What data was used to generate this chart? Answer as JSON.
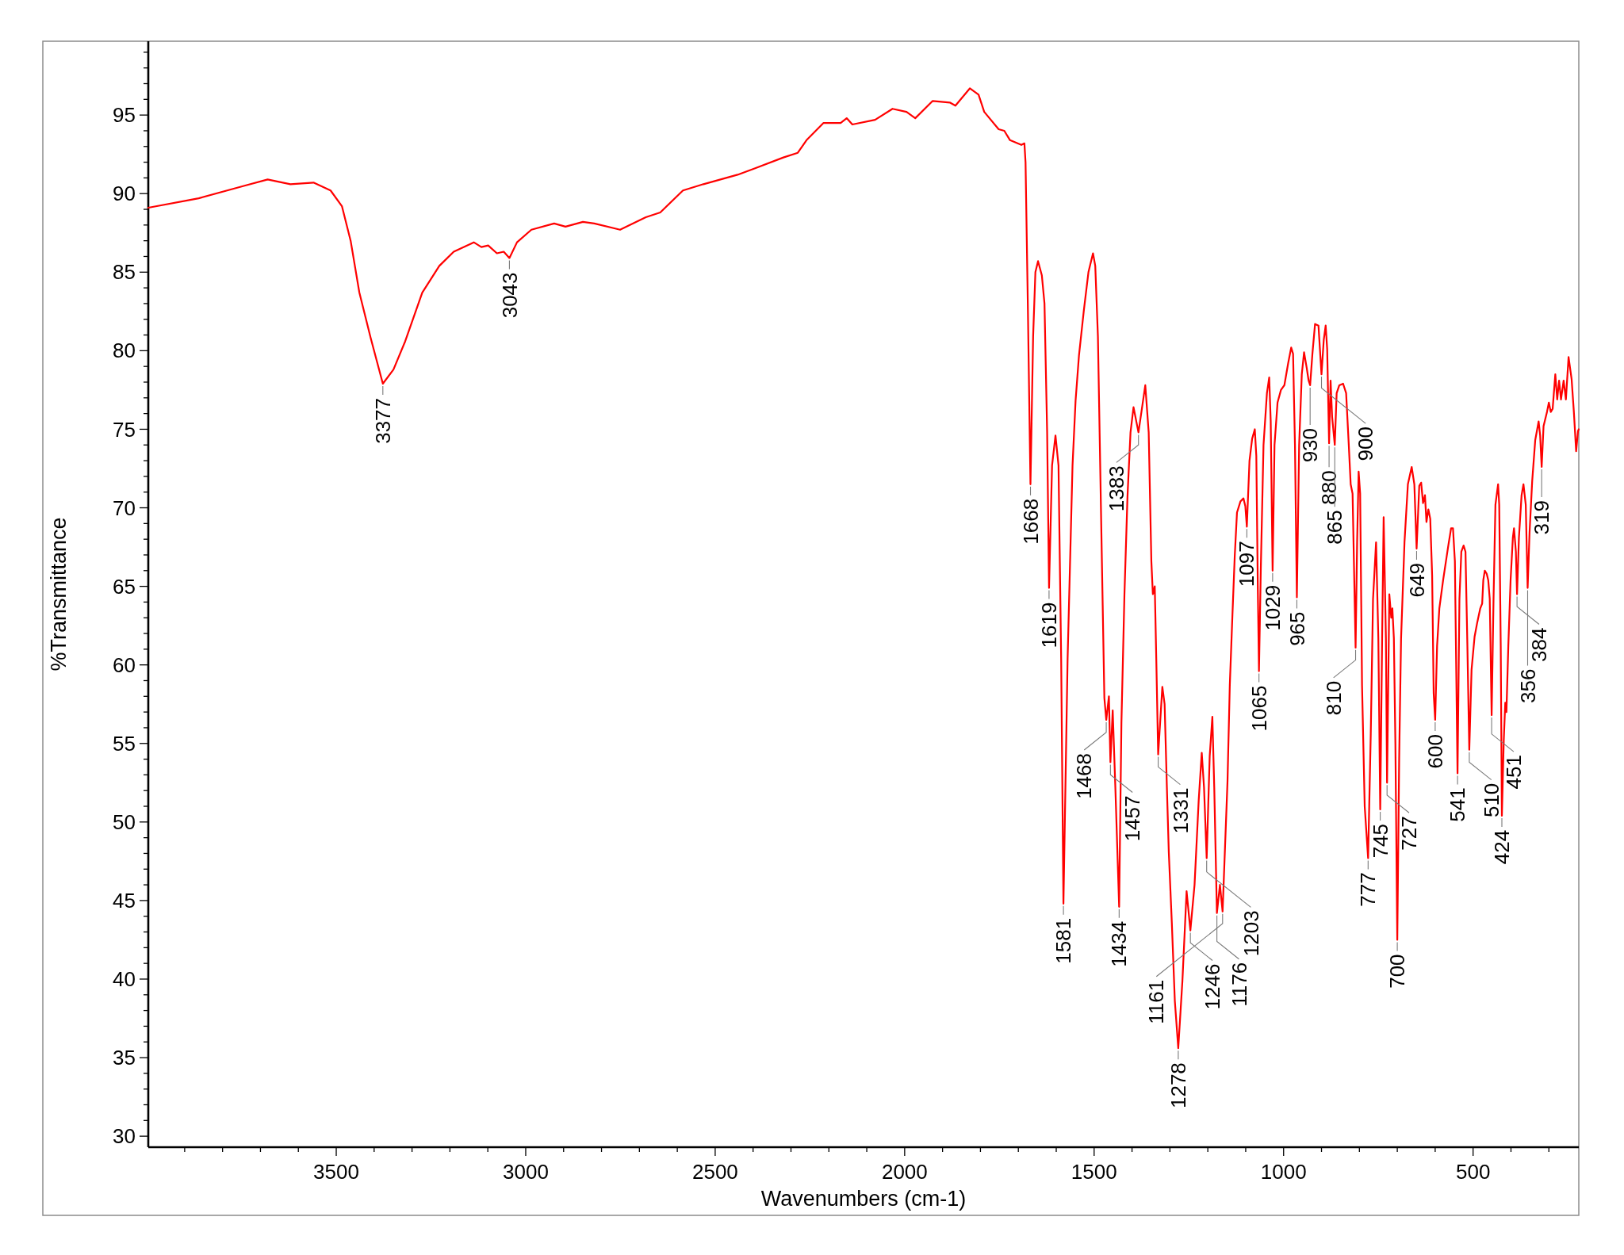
{
  "chart_data": {
    "type": "line",
    "xlabel": "Wavenumbers (cm-1)",
    "ylabel": "%Transmittance",
    "color": "#ff0000",
    "xlim": [
      3996,
      221
    ],
    "ylim": [
      29.3,
      99.7
    ],
    "xticks": [
      {
        "value": 3900,
        "label": null
      },
      {
        "value": 3800,
        "label": null
      },
      {
        "value": 3700,
        "label": null
      },
      {
        "value": 3600,
        "label": null
      },
      3500,
      {
        "value": 3400,
        "label": null
      },
      {
        "value": 3300,
        "label": null
      },
      {
        "value": 3200,
        "label": null
      },
      {
        "value": 3100,
        "label": null
      },
      3000,
      {
        "value": 2900,
        "label": null
      },
      {
        "value": 2800,
        "label": null
      },
      {
        "value": 2700,
        "label": null
      },
      {
        "value": 2600,
        "label": null
      },
      2500,
      {
        "value": 2400,
        "label": null
      },
      {
        "value": 2300,
        "label": null
      },
      {
        "value": 2200,
        "label": null
      },
      {
        "value": 2100,
        "label": null
      },
      2000,
      {
        "value": 1900,
        "label": null
      },
      {
        "value": 1800,
        "label": null
      },
      {
        "value": 1700,
        "label": null
      },
      {
        "value": 1600,
        "label": null
      },
      1500,
      {
        "value": 1400,
        "label": null
      },
      {
        "value": 1300,
        "label": null
      },
      {
        "value": 1200,
        "label": null
      },
      {
        "value": 1100,
        "label": null
      },
      1000,
      {
        "value": 900,
        "label": null
      },
      {
        "value": 800,
        "label": null
      },
      {
        "value": 700,
        "label": null
      },
      {
        "value": 600,
        "label": null
      },
      500,
      {
        "value": 400,
        "label": null
      },
      {
        "value": 300,
        "label": null
      }
    ],
    "yticks": [
      30,
      {
        "value": 31,
        "label": null
      },
      {
        "value": 32,
        "label": null
      },
      {
        "value": 33,
        "label": null
      },
      {
        "value": 34,
        "label": null
      },
      35,
      {
        "value": 36,
        "label": null
      },
      {
        "value": 37,
        "label": null
      },
      {
        "value": 38,
        "label": null
      },
      {
        "value": 39,
        "label": null
      },
      40,
      {
        "value": 41,
        "label": null
      },
      {
        "value": 42,
        "label": null
      },
      {
        "value": 43,
        "label": null
      },
      {
        "value": 44,
        "label": null
      },
      45,
      {
        "value": 46,
        "label": null
      },
      {
        "value": 47,
        "label": null
      },
      {
        "value": 48,
        "label": null
      },
      {
        "value": 49,
        "label": null
      },
      50,
      {
        "value": 51,
        "label": null
      },
      {
        "value": 52,
        "label": null
      },
      {
        "value": 53,
        "label": null
      },
      {
        "value": 54,
        "label": null
      },
      55,
      {
        "value": 56,
        "label": null
      },
      {
        "value": 57,
        "label": null
      },
      {
        "value": 58,
        "label": null
      },
      {
        "value": 59,
        "label": null
      },
      60,
      {
        "value": 61,
        "label": null
      },
      {
        "value": 62,
        "label": null
      },
      {
        "value": 63,
        "label": null
      },
      {
        "value": 64,
        "label": null
      },
      65,
      {
        "value": 66,
        "label": null
      },
      {
        "value": 67,
        "label": null
      },
      {
        "value": 68,
        "label": null
      },
      {
        "value": 69,
        "label": null
      },
      70,
      {
        "value": 71,
        "label": null
      },
      {
        "value": 72,
        "label": null
      },
      {
        "value": 73,
        "label": null
      },
      {
        "value": 74,
        "label": null
      },
      75,
      {
        "value": 76,
        "label": null
      },
      {
        "value": 77,
        "label": null
      },
      {
        "value": 78,
        "label": null
      },
      {
        "value": 79,
        "label": null
      },
      80,
      {
        "value": 81,
        "label": null
      },
      {
        "value": 82,
        "label": null
      },
      {
        "value": 83,
        "label": null
      },
      {
        "value": 84,
        "label": null
      },
      85,
      {
        "value": 86,
        "label": null
      },
      {
        "value": 87,
        "label": null
      },
      {
        "value": 88,
        "label": null
      },
      {
        "value": 89,
        "label": null
      },
      90,
      {
        "value": 91,
        "label": null
      },
      {
        "value": 92,
        "label": null
      },
      {
        "value": 93,
        "label": null
      },
      {
        "value": 94,
        "label": null
      },
      95,
      {
        "value": 96,
        "label": null
      },
      {
        "value": 97,
        "label": null
      },
      {
        "value": 98,
        "label": null
      },
      {
        "value": 99,
        "label": null
      }
    ],
    "x": [
      3996,
      3863,
      3742,
      3681,
      3621,
      3560,
      3515,
      3485,
      3462,
      3439,
      3409,
      3377,
      3349,
      3318,
      3273,
      3228,
      3190,
      3137,
      3117,
      3099,
      3076,
      3058,
      3043,
      3023,
      2985,
      2925,
      2895,
      2849,
      2819,
      2751,
      2683,
      2645,
      2585,
      2531,
      2441,
      2396,
      2320,
      2282,
      2259,
      2214,
      2169,
      2153,
      2138,
      2078,
      2032,
      1995,
      1972,
      1926,
      1881,
      1866,
      1828,
      1805,
      1790,
      1752,
      1737,
      1722,
      1692,
      1684,
      1681,
      1675,
      1668,
      1661,
      1655,
      1648,
      1638,
      1631,
      1624,
      1619,
      1611,
      1602,
      1594,
      1587,
      1581,
      1570,
      1557,
      1549,
      1540,
      1527,
      1515,
      1503,
      1497,
      1490,
      1481,
      1473,
      1468,
      1461,
      1457,
      1451,
      1444,
      1434,
      1428,
      1420,
      1412,
      1404,
      1396,
      1383,
      1365,
      1356,
      1349,
      1345,
      1340,
      1336,
      1331,
      1320,
      1314,
      1308,
      1303,
      1295,
      1287,
      1278,
      1267,
      1256,
      1246,
      1235,
      1224,
      1216,
      1210,
      1203,
      1195,
      1188,
      1183,
      1176,
      1168,
      1161,
      1148,
      1142,
      1135,
      1129,
      1123,
      1114,
      1106,
      1101,
      1097,
      1090,
      1083,
      1076,
      1072,
      1068,
      1065,
      1060,
      1053,
      1044,
      1038,
      1034,
      1029,
      1024,
      1016,
      1007,
      998,
      988,
      980,
      975,
      970,
      965,
      959,
      952,
      946,
      939,
      934,
      930,
      924,
      917,
      908,
      900,
      894,
      889,
      885,
      880,
      876,
      872,
      865,
      860,
      853,
      843,
      835,
      828,
      823,
      818,
      810,
      806,
      802,
      798,
      793,
      786,
      777,
      770,
      764,
      756,
      750,
      745,
      740,
      736,
      730,
      727,
      721,
      716,
      713,
      709,
      705,
      700,
      695,
      690,
      681,
      672,
      662,
      655,
      649,
      642,
      637,
      632,
      627,
      623,
      618,
      613,
      608,
      604,
      600,
      595,
      589,
      579,
      566,
      558,
      553,
      548,
      541,
      536,
      531,
      525,
      520,
      515,
      510,
      504,
      496,
      489,
      481,
      476,
      473,
      469,
      464,
      460,
      456,
      451,
      446,
      441,
      434,
      431,
      427,
      424,
      419,
      415,
      412,
      407,
      401,
      395,
      392,
      387,
      384,
      379,
      372,
      367,
      361,
      356,
      351,
      344,
      336,
      327,
      323,
      319,
      314,
      305,
      300,
      295,
      290,
      283,
      278,
      273,
      268,
      261,
      255,
      248,
      240,
      234,
      228,
      223,
      221
    ],
    "values": [
      89.1,
      89.7,
      90.5,
      90.9,
      90.6,
      90.7,
      90.2,
      89.2,
      87.0,
      83.7,
      80.8,
      77.9,
      78.8,
      80.6,
      83.7,
      85.4,
      86.3,
      86.9,
      86.6,
      86.7,
      86.2,
      86.3,
      85.9,
      86.9,
      87.7,
      88.1,
      87.9,
      88.2,
      88.1,
      87.7,
      88.5,
      88.8,
      90.2,
      90.6,
      91.2,
      91.6,
      92.3,
      92.6,
      93.4,
      94.5,
      94.5,
      94.8,
      94.4,
      94.7,
      95.4,
      95.2,
      94.8,
      95.9,
      95.8,
      95.6,
      96.7,
      96.3,
      95.2,
      94.1,
      94.0,
      93.4,
      93.1,
      93.2,
      92.0,
      83.0,
      71.5,
      80.9,
      85.0,
      85.7,
      84.8,
      83.0,
      74.8,
      64.9,
      72.7,
      74.6,
      72.7,
      60.4,
      44.8,
      60.4,
      72.7,
      76.8,
      79.7,
      82.6,
      85.0,
      86.2,
      85.4,
      80.9,
      68.6,
      57.9,
      56.5,
      58.0,
      53.8,
      57.1,
      52.2,
      44.6,
      56.3,
      64.5,
      70.7,
      74.8,
      76.4,
      74.8,
      77.8,
      74.8,
      66.6,
      64.5,
      65.0,
      60.4,
      54.3,
      58.6,
      57.5,
      52.2,
      48.1,
      43.6,
      38.6,
      35.6,
      39.9,
      45.6,
      43.1,
      46.0,
      51.4,
      54.4,
      52.2,
      47.7,
      54.2,
      56.7,
      52.2,
      44.2,
      46.0,
      44.3,
      52.6,
      58.7,
      63.2,
      66.9,
      69.7,
      70.4,
      70.6,
      70.1,
      68.8,
      73.0,
      74.4,
      75.0,
      73.3,
      64.8,
      59.6,
      66.3,
      74.0,
      77.3,
      78.3,
      75.5,
      66.0,
      74.0,
      76.7,
      77.5,
      77.8,
      79.2,
      80.2,
      79.8,
      74.0,
      64.3,
      74.0,
      78.5,
      79.9,
      78.9,
      78.1,
      77.8,
      79.8,
      81.7,
      81.6,
      78.5,
      80.7,
      81.6,
      80.1,
      74.1,
      78.1,
      75.8,
      74.0,
      77.3,
      77.8,
      77.9,
      77.3,
      74.0,
      71.5,
      70.9,
      61.1,
      67.8,
      72.3,
      70.9,
      58.7,
      51.0,
      47.7,
      55.6,
      64.2,
      67.8,
      61.7,
      50.8,
      61.7,
      69.4,
      61.7,
      52.5,
      64.5,
      63.0,
      63.6,
      61.7,
      55.0,
      42.5,
      54.1,
      61.7,
      67.8,
      71.5,
      72.6,
      71.5,
      67.4,
      71.4,
      71.6,
      70.3,
      70.8,
      69.1,
      69.9,
      69.3,
      65.7,
      58.2,
      56.5,
      61.2,
      63.6,
      65.4,
      67.5,
      68.7,
      68.7,
      66.6,
      53.1,
      64.2,
      67.2,
      67.6,
      67.2,
      61.2,
      54.6,
      59.7,
      61.8,
      62.7,
      63.6,
      63.9,
      65.4,
      66.0,
      65.8,
      65.4,
      64.2,
      56.8,
      64.2,
      70.2,
      71.5,
      70.2,
      61.2,
      50.4,
      55.2,
      57.6,
      57.0,
      61.2,
      65.4,
      68.1,
      68.7,
      67.2,
      64.5,
      68.1,
      70.8,
      71.5,
      70.2,
      64.9,
      68.4,
      71.7,
      74.3,
      75.5,
      74.6,
      72.6,
      75.2,
      76.1,
      76.7,
      76.1,
      76.3,
      78.5,
      76.9,
      78.1,
      76.9,
      78.1,
      76.9,
      79.6,
      78.2,
      76.1,
      73.6,
      74.9,
      75.0
    ],
    "annotations": [
      {
        "text": "3377",
        "x": 3377,
        "y": 77.9
      },
      {
        "text": "3043",
        "x": 3043,
        "y": 85.9
      },
      {
        "text": "1668",
        "x": 1668,
        "y": 71.5
      },
      {
        "text": "1619",
        "x": 1619,
        "y": 64.9
      },
      {
        "text": "1581",
        "x": 1581,
        "y": 44.8
      },
      {
        "text": "1468",
        "x": 1468,
        "y": 56.5
      },
      {
        "text": "1457",
        "x": 1457,
        "y": 53.8
      },
      {
        "text": "1434",
        "x": 1434,
        "y": 44.6
      },
      {
        "text": "1383",
        "x": 1383,
        "y": 74.8
      },
      {
        "text": "1331",
        "x": 1331,
        "y": 54.3
      },
      {
        "text": "1278",
        "x": 1278,
        "y": 35.6
      },
      {
        "text": "1246",
        "x": 1246,
        "y": 43.1
      },
      {
        "text": "1203",
        "x": 1203,
        "y": 47.7
      },
      {
        "text": "1176",
        "x": 1176,
        "y": 44.2
      },
      {
        "text": "1161",
        "x": 1161,
        "y": 44.3
      },
      {
        "text": "1097",
        "x": 1097,
        "y": 68.8
      },
      {
        "text": "1065",
        "x": 1065,
        "y": 59.6
      },
      {
        "text": "1029",
        "x": 1029,
        "y": 66.0
      },
      {
        "text": "965",
        "x": 965,
        "y": 64.3
      },
      {
        "text": "930",
        "x": 930,
        "y": 77.8
      },
      {
        "text": "900",
        "x": 900,
        "y": 78.5
      },
      {
        "text": "880",
        "x": 880,
        "y": 74.1
      },
      {
        "text": "865",
        "x": 865,
        "y": 74.0
      },
      {
        "text": "810",
        "x": 810,
        "y": 61.1
      },
      {
        "text": "777",
        "x": 777,
        "y": 47.7
      },
      {
        "text": "745",
        "x": 745,
        "y": 50.8
      },
      {
        "text": "727",
        "x": 727,
        "y": 52.5
      },
      {
        "text": "700",
        "x": 700,
        "y": 42.5
      },
      {
        "text": "649",
        "x": 649,
        "y": 67.4
      },
      {
        "text": "600",
        "x": 600,
        "y": 56.5
      },
      {
        "text": "541",
        "x": 541,
        "y": 53.1
      },
      {
        "text": "510",
        "x": 510,
        "y": 54.6
      },
      {
        "text": "451",
        "x": 451,
        "y": 56.8
      },
      {
        "text": "424",
        "x": 424,
        "y": 50.4
      },
      {
        "text": "384",
        "x": 384,
        "y": 64.5
      },
      {
        "text": "356",
        "x": 356,
        "y": 64.9
      },
      {
        "text": "319",
        "x": 319,
        "y": 72.6
      }
    ]
  }
}
